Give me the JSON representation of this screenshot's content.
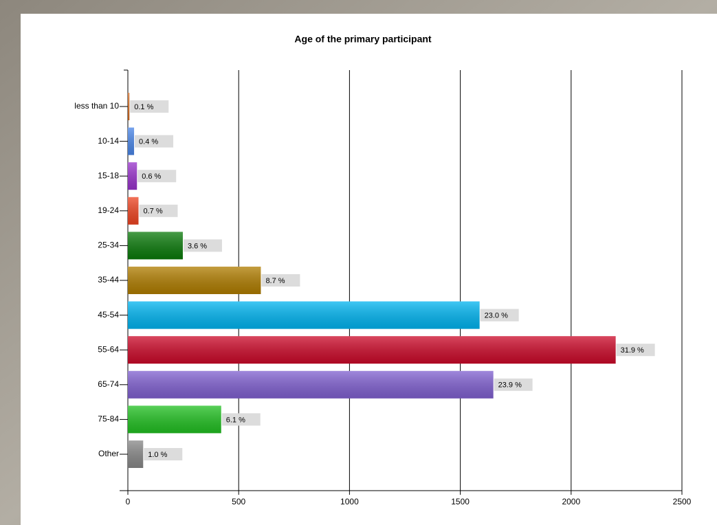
{
  "chart_data": {
    "type": "hbar",
    "title": "Age of the primary participant",
    "categories": [
      "less than 10",
      "10-14",
      "15-18",
      "19-24",
      "25-34",
      "35-44",
      "45-54",
      "55-64",
      "65-74",
      "75-84",
      "Other"
    ],
    "values": [
      7,
      28,
      41,
      48,
      248,
      600,
      1587,
      2201,
      1649,
      421,
      69
    ],
    "value_labels": [
      "0.1 %",
      "0.4 %",
      "0.6 %",
      "0.7 %",
      "3.6 %",
      "8.7 %",
      "23.0 %",
      "31.9 %",
      "23.9 %",
      "6.1 %",
      "1.0 %"
    ],
    "colors": [
      "#d2691e",
      "#4a86e8",
      "#9933cc",
      "#ee4422",
      "#0b7a0b",
      "#b07d00",
      "#00b4f0",
      "#cc0a2a",
      "#8060d0",
      "#22c022",
      "#888888"
    ],
    "xlim": [
      0,
      2500
    ],
    "xticks": [
      0,
      500,
      1000,
      1500,
      2000,
      2500
    ],
    "grid": true
  }
}
